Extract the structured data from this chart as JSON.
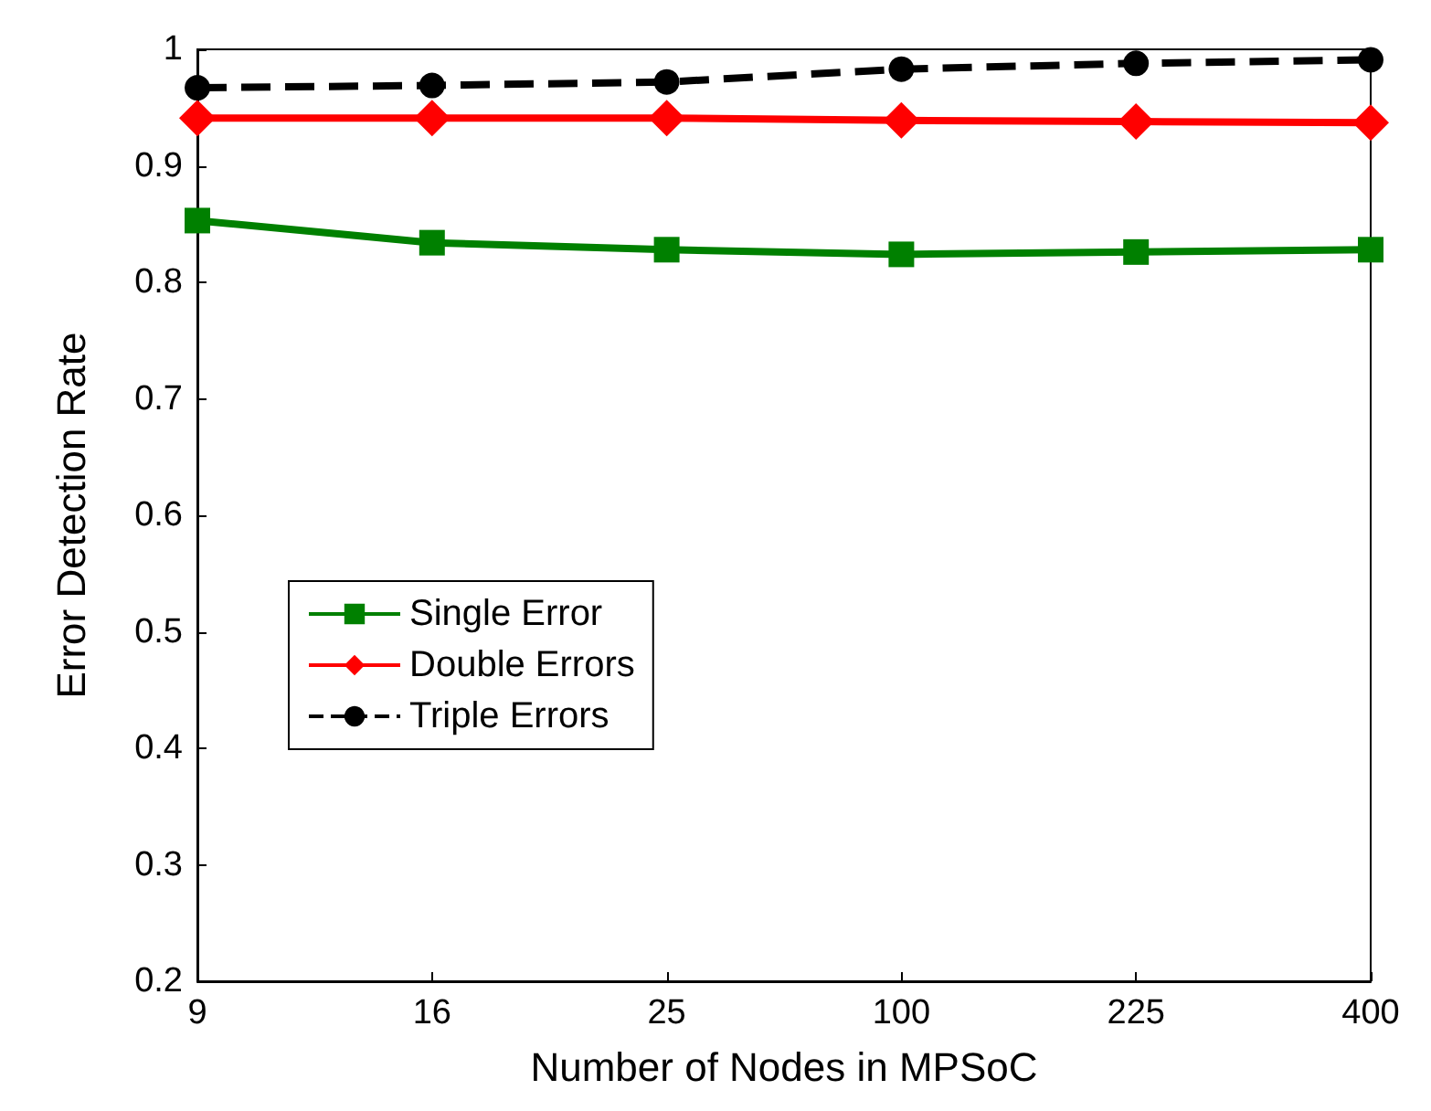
{
  "chart_data": {
    "type": "line",
    "xlabel": "Number of Nodes in MPSoC",
    "ylabel": "Error Detection Rate",
    "categories": [
      "9",
      "16",
      "25",
      "100",
      "225",
      "400"
    ],
    "ylim": [
      0.2,
      1
    ],
    "yticks": [
      0.2,
      0.3,
      0.4,
      0.5,
      0.6,
      0.7,
      0.8,
      0.9,
      1
    ],
    "grid": false,
    "legend": "left",
    "series": [
      {
        "name": "Single Error",
        "color": "#008000",
        "marker": "square",
        "line_style": "solid",
        "values": [
          0.853,
          0.834,
          0.828,
          0.824,
          0.826,
          0.828
        ]
      },
      {
        "name": "Double Errors",
        "color": "#ff0000",
        "marker": "diamond",
        "line_style": "solid",
        "values": [
          0.941,
          0.941,
          0.941,
          0.939,
          0.938,
          0.937
        ]
      },
      {
        "name": "Triple Errors",
        "color": "#000000",
        "marker": "circle",
        "line_style": "dashed",
        "values": [
          0.967,
          0.969,
          0.972,
          0.983,
          0.988,
          0.991
        ]
      }
    ]
  }
}
